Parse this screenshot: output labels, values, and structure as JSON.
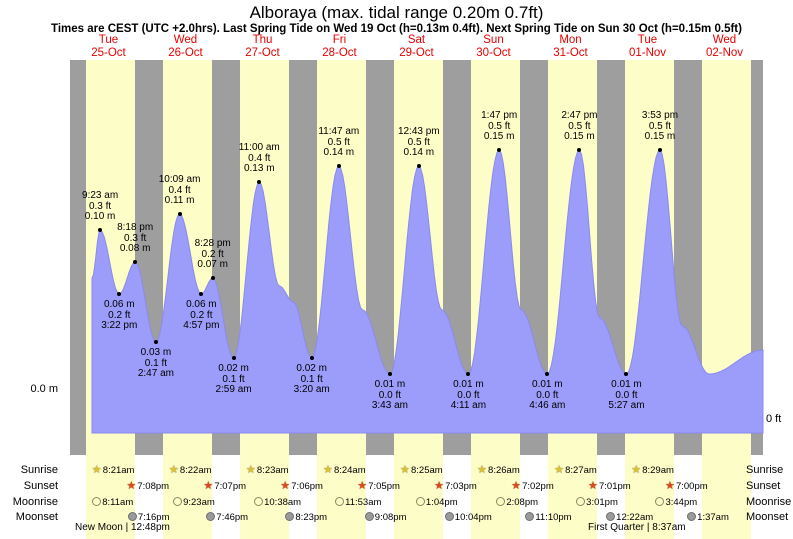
{
  "title": "Alboraya (max. tidal range 0.20m 0.7ft)",
  "subtitle": "Times are CEST (UTC +2.0hrs). Last Spring Tide on Wed 19 Oct (h=0.13m 0.4ft). Next Spring Tide on Sun 30 Oct (h=0.15m 0.5ft)",
  "axis": {
    "left_label": "0.0 m",
    "right_label": "0 ft"
  },
  "days": [
    {
      "name": "Tue",
      "date": "25-Oct"
    },
    {
      "name": "Wed",
      "date": "26-Oct"
    },
    {
      "name": "Thu",
      "date": "27-Oct"
    },
    {
      "name": "Fri",
      "date": "28-Oct"
    },
    {
      "name": "Sat",
      "date": "29-Oct"
    },
    {
      "name": "Sun",
      "date": "30-Oct"
    },
    {
      "name": "Mon",
      "date": "31-Oct"
    },
    {
      "name": "Tue",
      "date": "01-Nov"
    },
    {
      "name": "Wed",
      "date": "02-Nov"
    }
  ],
  "colors": {
    "day_label": "#e80000",
    "plot_bg": "#9e9e9e",
    "daylight_band": "#fdfdc8",
    "tide_fill": "#9c9cfa",
    "tide_stroke": "#8a8af0",
    "sunrise_icon": "#dfc22f",
    "sunset_icon": "#e04818",
    "moonrise_icon": "#fdfdc8",
    "moonset_icon": "#9a9a9a"
  },
  "chart_data": {
    "type": "area",
    "title": "Alboraya tide height",
    "x_categories": [
      "25-Oct",
      "26-Oct",
      "27-Oct",
      "28-Oct",
      "29-Oct",
      "30-Oct",
      "31-Oct",
      "01-Nov",
      "02-Nov"
    ],
    "y_axis": {
      "left": "0.0 m",
      "right": "0 ft",
      "units_left": "m",
      "units_right": "ft",
      "ylim_m": [
        0,
        0.2
      ]
    },
    "points": [
      {
        "d": 0,
        "f": 0.286,
        "h": 0.07
      },
      {
        "d": 0,
        "f": 0.391,
        "h": 0.1,
        "kind": "high",
        "time": "9:23 am",
        "ft": "0.3 ft",
        "m": "0.10 m"
      },
      {
        "d": 0,
        "f": 0.64,
        "h": 0.06,
        "kind": "low",
        "time": "3:22 pm",
        "ft": "0.2 ft",
        "m": "0.06 m"
      },
      {
        "d": 0,
        "f": 0.846,
        "h": 0.08,
        "kind": "high",
        "time": "8:18 pm",
        "ft": "0.3 ft",
        "m": "0.08 m"
      },
      {
        "d": 1,
        "f": 0.116,
        "h": 0.03,
        "kind": "low",
        "time": "2:47 am",
        "ft": "0.1 ft",
        "m": "0.03 m"
      },
      {
        "d": 1,
        "f": 0.423,
        "h": 0.11,
        "kind": "high",
        "time": "10:09 am",
        "ft": "0.4 ft",
        "m": "0.11 m"
      },
      {
        "d": 1,
        "f": 0.706,
        "h": 0.06,
        "kind": "low",
        "time": "4:57 pm",
        "ft": "0.2 ft",
        "m": "0.06 m"
      },
      {
        "d": 1,
        "f": 0.853,
        "h": 0.07,
        "kind": "high",
        "time": "8:28 pm",
        "ft": "0.2 ft",
        "m": "0.07 m"
      },
      {
        "d": 2,
        "f": 0.124,
        "h": 0.02,
        "kind": "low",
        "time": "2:59 am",
        "ft": "0.1 ft",
        "m": "0.02 m"
      },
      {
        "d": 2,
        "f": 0.458,
        "h": 0.13,
        "kind": "high",
        "time": "11:00 am",
        "ft": "0.4 ft",
        "m": "0.13 m"
      },
      {
        "d": 2,
        "f": 0.72,
        "h": 0.065
      },
      {
        "d": 2,
        "f": 0.9,
        "h": 0.055
      },
      {
        "d": 3,
        "f": 0.139,
        "h": 0.02,
        "kind": "low",
        "time": "3:20 am",
        "ft": "0.1 ft",
        "m": "0.02 m"
      },
      {
        "d": 3,
        "f": 0.491,
        "h": 0.14,
        "kind": "high",
        "time": "11:47 am",
        "ft": "0.5 ft",
        "m": "0.14 m"
      },
      {
        "d": 3,
        "f": 0.8,
        "h": 0.05
      },
      {
        "d": 4,
        "f": 0.155,
        "h": 0.01,
        "kind": "low",
        "time": "3:43 am",
        "ft": "0.0 ft",
        "m": "0.01 m"
      },
      {
        "d": 4,
        "f": 0.53,
        "h": 0.14,
        "kind": "high",
        "time": "12:43 pm",
        "ft": "0.5 ft",
        "m": "0.14 m"
      },
      {
        "d": 4,
        "f": 0.83,
        "h": 0.05
      },
      {
        "d": 5,
        "f": 0.174,
        "h": 0.01,
        "kind": "low",
        "time": "4:11 am",
        "ft": "0.0 ft",
        "m": "0.01 m"
      },
      {
        "d": 5,
        "f": 0.574,
        "h": 0.15,
        "kind": "high",
        "time": "1:47 pm",
        "ft": "0.5 ft",
        "m": "0.15 m"
      },
      {
        "d": 5,
        "f": 0.86,
        "h": 0.05
      },
      {
        "d": 6,
        "f": 0.199,
        "h": 0.01,
        "kind": "low",
        "time": "4:46 am",
        "ft": "0.0 ft",
        "m": "0.01 m"
      },
      {
        "d": 6,
        "f": 0.616,
        "h": 0.15,
        "kind": "high",
        "time": "2:47 pm",
        "ft": "0.5 ft",
        "m": "0.15 m"
      },
      {
        "d": 6,
        "f": 0.88,
        "h": 0.045
      },
      {
        "d": 7,
        "f": 0.227,
        "h": 0.01,
        "kind": "low",
        "time": "5:27 am",
        "ft": "0.0 ft",
        "m": "0.01 m"
      },
      {
        "d": 7,
        "f": 0.662,
        "h": 0.15,
        "kind": "high",
        "time": "3:53 pm",
        "ft": "0.5 ft",
        "m": "0.15 m"
      },
      {
        "d": 7,
        "f": 0.95,
        "h": 0.04
      },
      {
        "d": 8,
        "f": 0.3,
        "h": 0.01
      },
      {
        "d": 8,
        "f": 1.0,
        "h": 0.025
      }
    ]
  },
  "astro": {
    "row_labels": [
      "Sunrise",
      "Sunset",
      "Moonrise",
      "Moonset"
    ],
    "sunrise": {
      "times": [
        "8:21am",
        "8:22am",
        "8:23am",
        "8:24am",
        "8:25am",
        "8:26am",
        "8:27am",
        "8:29am"
      ],
      "days": [
        0,
        1,
        2,
        3,
        4,
        5,
        6,
        7
      ]
    },
    "sunset": {
      "times": [
        "7:08pm",
        "7:07pm",
        "7:06pm",
        "7:05pm",
        "7:03pm",
        "7:02pm",
        "7:01pm",
        "7:00pm"
      ],
      "days": [
        0,
        1,
        2,
        3,
        4,
        5,
        6,
        7
      ]
    },
    "moonrise": {
      "times": [
        "8:11am",
        "9:23am",
        "10:38am",
        "11:53am",
        "1:04pm",
        "2:08pm",
        "3:01pm",
        "3:44pm"
      ],
      "days": [
        0,
        1,
        2,
        3,
        4,
        5,
        6,
        7
      ]
    },
    "moonset": {
      "times": [
        "7:16pm",
        "7:46pm",
        "8:23pm",
        "9:08pm",
        "10:04pm",
        "11:10pm",
        "12:22am",
        "1:37am"
      ],
      "days": [
        0,
        1,
        2,
        3,
        4,
        5,
        7,
        8
      ]
    },
    "phases": [
      "New Moon | 12:48pm",
      "First Quarter | 8:37am"
    ]
  }
}
